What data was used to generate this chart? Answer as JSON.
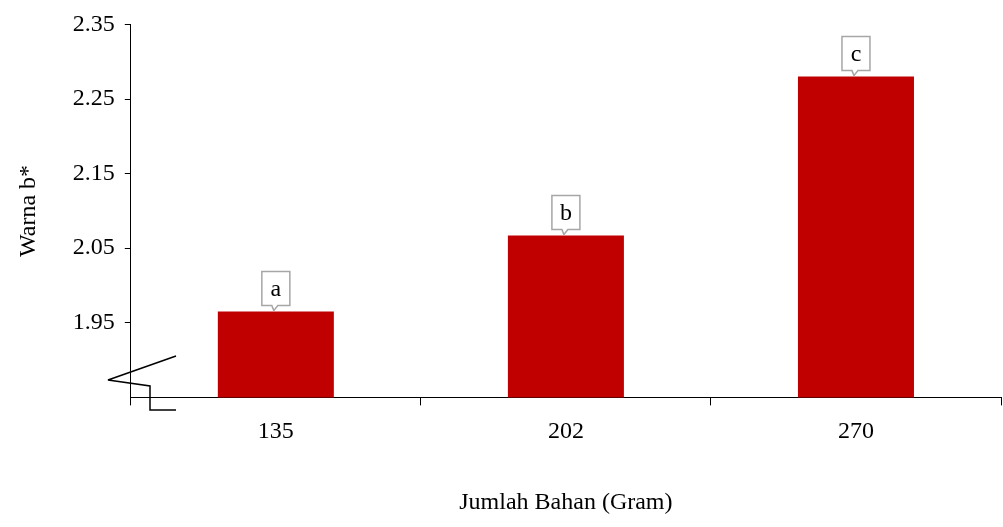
{
  "chart_data": {
    "type": "bar",
    "xlabel": "Jumlah Bahan (Gram)",
    "ylabel": "Warna b*",
    "categories": [
      "135",
      "202",
      "270"
    ],
    "values": [
      1.965,
      2.067,
      2.28
    ],
    "color": "#c00000",
    "ylim": [
      1.85,
      2.35
    ],
    "yticks": [
      1.95,
      2.05,
      2.15,
      2.25,
      2.35
    ],
    "grid": false,
    "legend": false,
    "annotations": [
      {
        "text": "a",
        "x": "135",
        "y": 1.965
      },
      {
        "text": "b",
        "x": "202",
        "y": 2.067
      },
      {
        "text": "c",
        "x": "270",
        "y": 2.28
      }
    ]
  }
}
